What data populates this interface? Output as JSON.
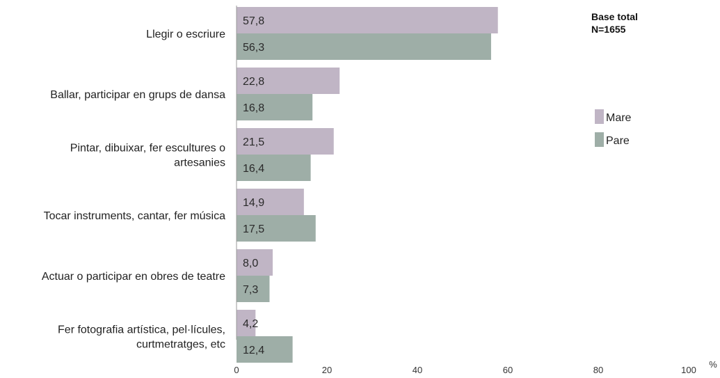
{
  "chart_data": {
    "type": "bar",
    "orientation": "horizontal",
    "categories": [
      [
        "Llegir o escriure"
      ],
      [
        "Ballar, participar en grups de dansa"
      ],
      [
        "Pintar, dibuixar, fer escultures o",
        "artesanies"
      ],
      [
        "Tocar instruments, cantar, fer música"
      ],
      [
        "Actuar o participar en obres de teatre"
      ],
      [
        "Fer fotografia artística, pel·lícules,",
        "curtmetratges, etc"
      ]
    ],
    "series": [
      {
        "name": "Mare",
        "color": "#c0b5c5",
        "values": [
          57.8,
          22.8,
          21.5,
          14.9,
          8.0,
          4.2
        ],
        "labels": [
          "57,8",
          "22,8",
          "21,5",
          "14,9",
          "8,0",
          "4,2"
        ]
      },
      {
        "name": "Pare",
        "color": "#9eaea7",
        "values": [
          56.3,
          16.8,
          16.4,
          17.5,
          7.3,
          12.4
        ],
        "labels": [
          "56,3",
          "16,8",
          "16,4",
          "17,5",
          "7,3",
          "12,4"
        ]
      }
    ],
    "xlim": [
      0,
      100
    ],
    "xticks": [
      "0",
      "20",
      "40",
      "60",
      "80",
      "100"
    ],
    "xunit": "%",
    "legend": {
      "position": "right"
    },
    "note": [
      "Base total",
      "N=1655"
    ],
    "grid": false
  }
}
